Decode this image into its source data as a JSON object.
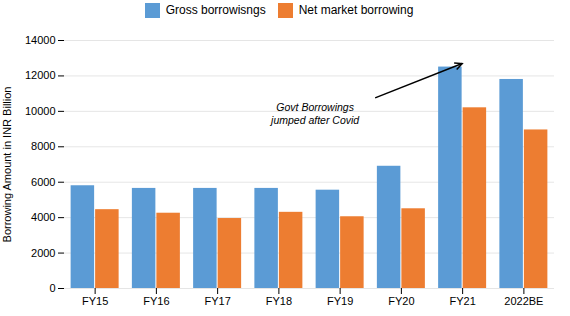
{
  "chart_data": {
    "type": "bar",
    "categories": [
      "FY15",
      "FY16",
      "FY17",
      "FY18",
      "FY19",
      "FY20",
      "FY21",
      "2022BE"
    ],
    "series": [
      {
        "name": "Gross borrowisngs",
        "color": "#5B9BD5",
        "values": [
          5800,
          5650,
          5650,
          5650,
          5550,
          6900,
          12500,
          11800
        ]
      },
      {
        "name": "Net market borrowing",
        "color": "#ED7D31",
        "values": [
          4450,
          4250,
          3950,
          4300,
          4050,
          4500,
          10200,
          8950
        ]
      }
    ],
    "ylabel": "Borrowing Amount in INR Billion",
    "ylim": [
      0,
      14000
    ],
    "yticks": [
      0,
      2000,
      4000,
      6000,
      8000,
      10000,
      12000,
      14000
    ],
    "grid": true,
    "legend": "top",
    "annotations": [
      "Govt Borrowings\njumped after Covid"
    ]
  }
}
